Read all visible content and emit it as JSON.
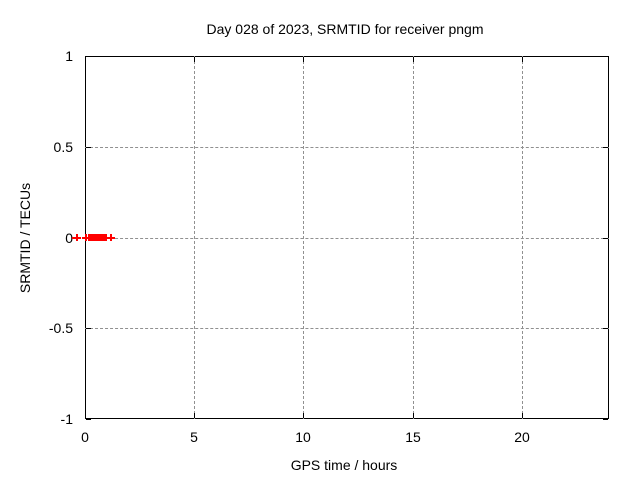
{
  "chart_data": {
    "type": "scatter",
    "title": "Day 028 of 2023, SRMTID for receiver pngm",
    "xlabel": "GPS time / hours",
    "ylabel": "SRMTID / TECUs",
    "xlim": [
      0,
      24
    ],
    "ylim": [
      -1,
      1
    ],
    "xticks": [
      {
        "v": 0,
        "label": "0"
      },
      {
        "v": 5,
        "label": "5"
      },
      {
        "v": 10,
        "label": "10"
      },
      {
        "v": 15,
        "label": "15"
      },
      {
        "v": 20,
        "label": "20"
      }
    ],
    "yticks": [
      {
        "v": 1,
        "label": "1"
      },
      {
        "v": 0.5,
        "label": "0.5"
      },
      {
        "v": 0,
        "label": "0"
      },
      {
        "v": -0.5,
        "label": "-0.5"
      },
      {
        "v": -1,
        "label": "-1"
      }
    ],
    "grid": true,
    "legend": "none",
    "series": [
      {
        "name": "SRMTID",
        "marker": "plus",
        "color": "#ff0000",
        "x": [
          -0.37,
          0.05,
          0.17,
          0.28,
          0.38,
          0.47,
          0.55,
          0.63,
          0.71,
          0.79,
          0.87,
          0.95,
          1.17
        ],
        "y": [
          0,
          0,
          0,
          0,
          0,
          0,
          0,
          0,
          0,
          0,
          0,
          0,
          0
        ]
      }
    ],
    "colors": {
      "axis": "#000000",
      "grid": "#909090",
      "marker": "#ff0000",
      "background": "#ffffff",
      "text": "#000000"
    }
  }
}
